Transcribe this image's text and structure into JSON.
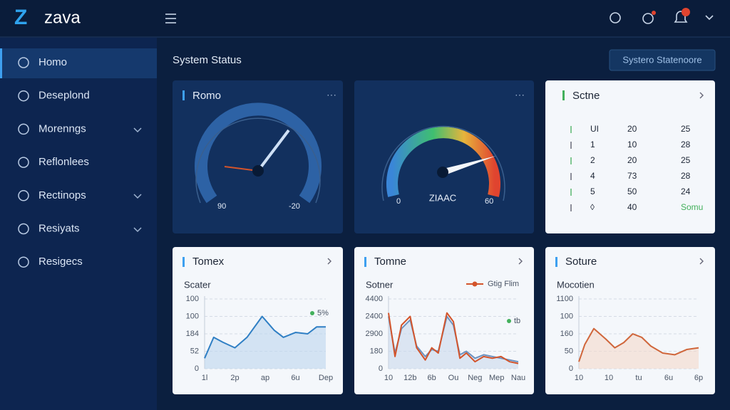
{
  "brand": "zava",
  "sidebar": [
    "Homo",
    "Deseplond",
    "Morenngs",
    "Reflonlees",
    "Rectinops",
    "Resiyats",
    "Resigecs"
  ],
  "page_title": "System Status",
  "button": "Systero Statenoore",
  "gauges": [
    {
      "title": "Romo",
      "labels": [
        "90",
        "-20"
      ]
    },
    {
      "labels": [
        "0",
        "ZIAAC",
        "60"
      ]
    }
  ],
  "table": {
    "title": "Sctne",
    "rows": [
      [
        "UI",
        "20",
        "25"
      ],
      [
        "1",
        "10",
        "28"
      ],
      [
        "2",
        "20",
        "25"
      ],
      [
        "4",
        "73",
        "28"
      ],
      [
        "5",
        "50",
        "24"
      ],
      [
        "◊",
        "40",
        "Somu"
      ]
    ]
  },
  "chart_data": [
    {
      "type": "line",
      "title": "Tomex",
      "subtitle": "Scater",
      "ylim": [
        0,
        100
      ],
      "yticks": [
        0,
        {
          "value": 25,
          "label": "52"
        },
        {
          "value": 50,
          "label": "184"
        },
        {
          "value": 75,
          "label": "100"
        },
        100
      ],
      "xlim": [
        0,
        4
      ],
      "xticks": [
        {
          "value": 0,
          "label": "1l"
        },
        {
          "value": 1,
          "label": "2p"
        },
        {
          "value": 2,
          "label": "ap"
        },
        {
          "value": 3,
          "label": "6u"
        },
        {
          "value": 4,
          "label": "Dep"
        }
      ],
      "legend": [
        {
          "label": "5%",
          "color": "#43b05c"
        }
      ],
      "series": [
        {
          "color": "#2f7fc4",
          "fill": "#bcd6ee",
          "x": [
            0,
            0.3,
            0.6,
            1,
            1.4,
            1.9,
            2.3,
            2.6,
            3,
            3.4,
            3.7,
            4
          ],
          "values": [
            15,
            45,
            38,
            30,
            45,
            75,
            55,
            45,
            52,
            50,
            60,
            60
          ]
        }
      ]
    },
    {
      "type": "line",
      "title": "Tomne",
      "subtitle": "Sotner",
      "ylim": [
        0,
        4000
      ],
      "yticks": [
        0,
        {
          "value": 1000,
          "label": "180"
        },
        {
          "value": 2000,
          "label": "2900"
        },
        {
          "value": 3000,
          "label": "2400"
        },
        {
          "value": 4000,
          "label": "4400"
        }
      ],
      "xlim": [
        0,
        6
      ],
      "xticks": [
        {
          "value": 0,
          "label": "10"
        },
        {
          "value": 1,
          "label": "12b"
        },
        {
          "value": 2,
          "label": "6b"
        },
        {
          "value": 3,
          "label": "Ou"
        },
        {
          "value": 4,
          "label": "Neg"
        },
        {
          "value": 5,
          "label": "Mep"
        },
        {
          "value": 6,
          "label": "Nau"
        }
      ],
      "legend": [
        {
          "label": "tb",
          "color": "#43b05c"
        }
      ],
      "series": [
        {
          "name": "Gtig Flim",
          "color": "#d3542b",
          "x": [
            0,
            0.3,
            0.6,
            1,
            1.3,
            1.7,
            2,
            2.3,
            2.7,
            3,
            3.3,
            3.6,
            4,
            4.4,
            4.8,
            5.2,
            5.6,
            6
          ],
          "values": [
            3200,
            700,
            2500,
            3000,
            1200,
            500,
            1200,
            900,
            3200,
            2700,
            600,
            900,
            400,
            700,
            600,
            700,
            400,
            300
          ]
        },
        {
          "color": "#6d93c0",
          "fill": "#c9d9ec",
          "x": [
            0,
            0.3,
            0.6,
            1,
            1.3,
            1.7,
            2,
            2.3,
            2.7,
            3,
            3.3,
            3.6,
            4,
            4.4,
            4.8,
            5.2,
            5.6,
            6
          ],
          "values": [
            3000,
            900,
            2300,
            2800,
            1300,
            700,
            1100,
            1000,
            3000,
            2500,
            800,
            1000,
            600,
            800,
            700,
            600,
            500,
            400
          ]
        }
      ]
    },
    {
      "type": "line",
      "title": "Soture",
      "subtitle": "Mocotien",
      "ylim": [
        0,
        200
      ],
      "yticks": [
        0,
        50,
        {
          "value": 100,
          "label": "160"
        },
        {
          "value": 150,
          "label": "100"
        },
        {
          "value": 200,
          "label": "1100"
        }
      ],
      "xlim": [
        0,
        4
      ],
      "xticks": [
        {
          "value": 0,
          "label": "10"
        },
        {
          "value": 1,
          "label": "10"
        },
        {
          "value": 2,
          "label": "tu"
        },
        {
          "value": 3,
          "label": "6u"
        },
        {
          "value": 4,
          "label": "6p"
        }
      ],
      "legend": [],
      "series": [
        {
          "color": "#d0663b",
          "fill": "#f3d9cc",
          "x": [
            0,
            0.2,
            0.5,
            0.9,
            1.2,
            1.5,
            1.8,
            2.1,
            2.4,
            2.8,
            3.2,
            3.6,
            4
          ],
          "values": [
            20,
            70,
            115,
            85,
            60,
            75,
            100,
            90,
            65,
            45,
            40,
            55,
            60
          ]
        }
      ]
    }
  ]
}
